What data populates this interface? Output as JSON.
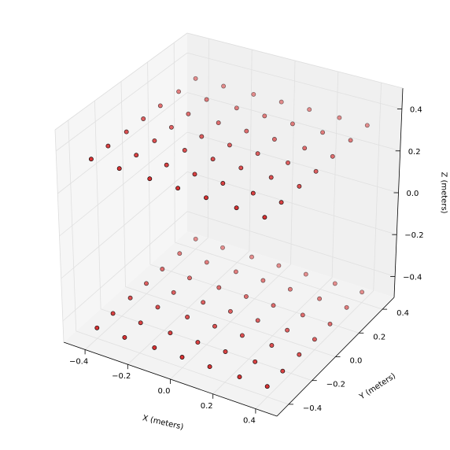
{
  "chart_data": {
    "type": "scatter3d",
    "title": "",
    "xlabel": "X (meters)",
    "ylabel": "Y (meters)",
    "zlabel": "Z (meters)",
    "xlim": [
      -0.5,
      0.5
    ],
    "ylim": [
      -0.5,
      0.5
    ],
    "zlim": [
      -0.5,
      0.5
    ],
    "xticks": [
      -0.4,
      -0.2,
      0.0,
      0.2,
      0.4
    ],
    "yticks": [
      -0.4,
      -0.2,
      0.0,
      0.2,
      0.4
    ],
    "zticks": [
      -0.4,
      -0.2,
      0.0,
      0.2,
      0.4
    ],
    "xtick_labels": [
      "−0.4",
      "−0.2",
      "0.0",
      "0.2",
      "0.4"
    ],
    "ytick_labels": [
      "−0.4",
      "−0.2",
      "0.0",
      "0.2",
      "0.4"
    ],
    "ztick_labels": [
      "−0.4",
      "−0.2",
      "0.0",
      "0.2",
      "0.4"
    ],
    "grid": true,
    "marker_color": "#d62728",
    "marker_edge_color": "#000000",
    "series": [
      {
        "name": "",
        "grid_values": [
          -0.4,
          -0.27,
          -0.13,
          0.0,
          0.13,
          0.27,
          0.4
        ],
        "planes_z": [
          0.35,
          -0.45
        ],
        "points": "7 x 7 grid in x and y at each z plane (98 points)"
      }
    ]
  }
}
